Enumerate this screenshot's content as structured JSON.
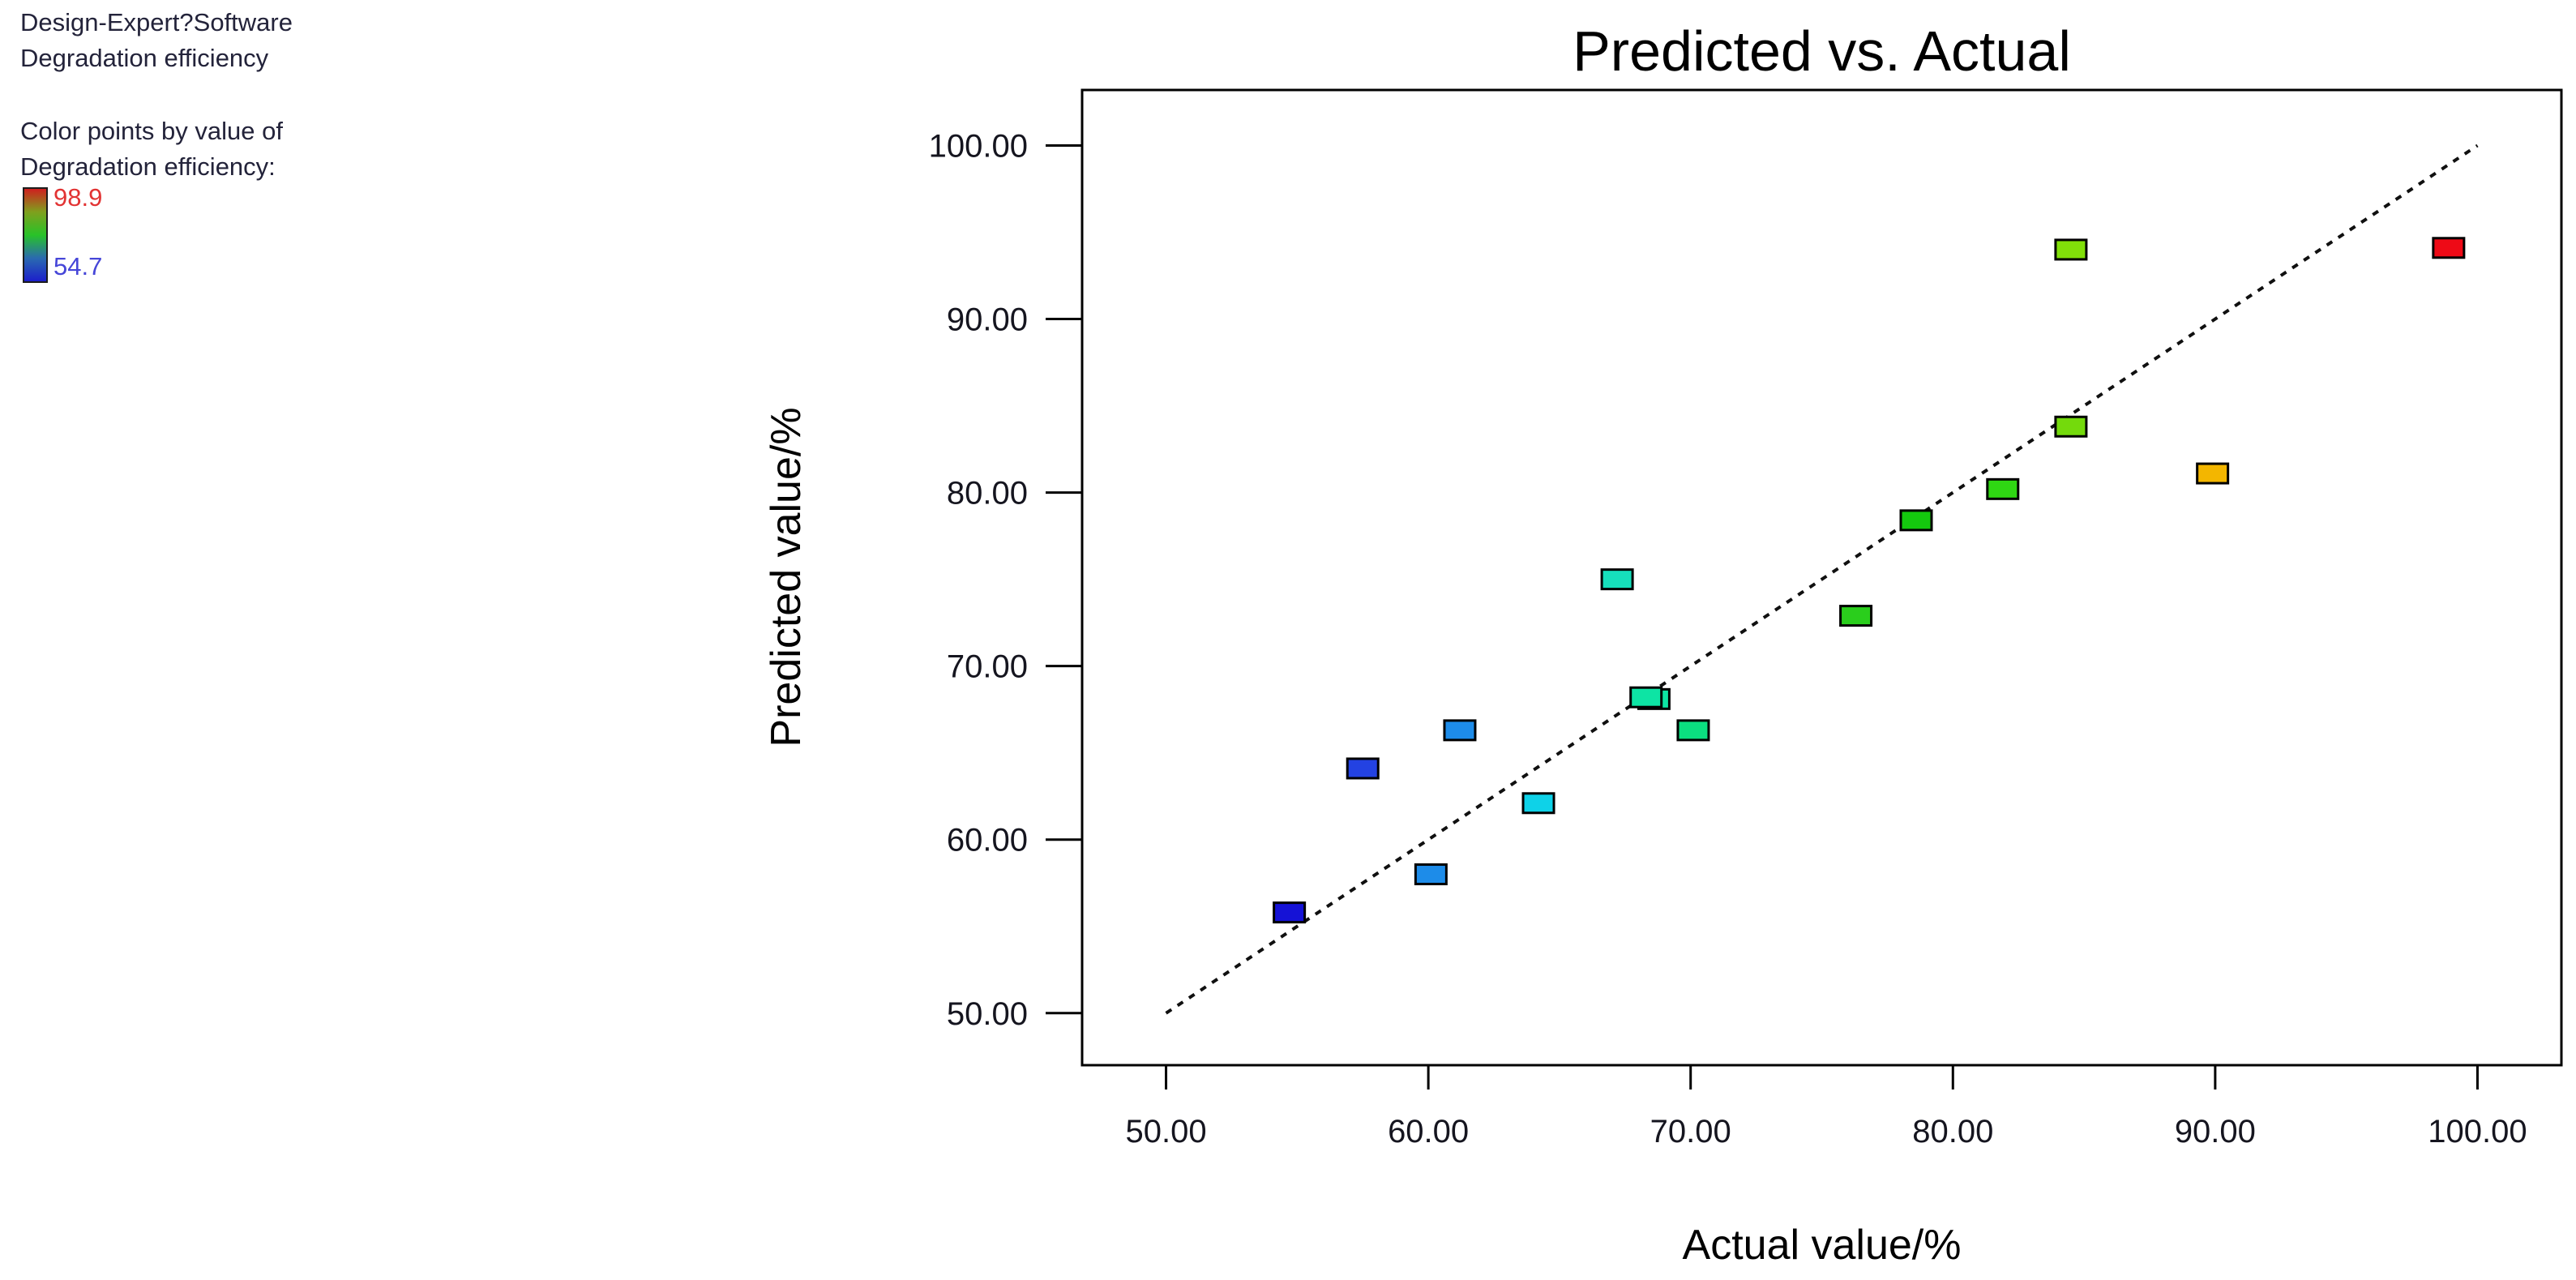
{
  "info_panel": {
    "line1": "Design-Expert?Software",
    "line2": "Degradation efficiency",
    "line3": "Color points by value of",
    "line4": "Degradation efficiency:",
    "max_label": "98.9",
    "min_label": "54.7",
    "max_label_color": "#e23333",
    "min_label_color": "#4646d8",
    "gradient_colors": [
      "#cf1f1f",
      "#7fa01d",
      "#28c228",
      "#2a6ab0",
      "#1c1ecb"
    ]
  },
  "chart_data": {
    "type": "scatter",
    "title": "Predicted vs. Actual",
    "xlabel": "Actual value/%",
    "ylabel": "Predicted value/%",
    "xlim": [
      46.8,
      103.2
    ],
    "ylim": [
      47.0,
      103.2
    ],
    "grid": false,
    "x_ticks": [
      {
        "value": 50,
        "label": "50.00"
      },
      {
        "value": 60,
        "label": "60.00"
      },
      {
        "value": 70,
        "label": "70.00"
      },
      {
        "value": 80,
        "label": "80.00"
      },
      {
        "value": 90,
        "label": "90.00"
      },
      {
        "value": 100,
        "label": "100.00"
      }
    ],
    "y_ticks": [
      {
        "value": 50,
        "label": "50.00"
      },
      {
        "value": 60,
        "label": "60.00"
      },
      {
        "value": 70,
        "label": "70.00"
      },
      {
        "value": 80,
        "label": "80.00"
      },
      {
        "value": 90,
        "label": "90.00"
      },
      {
        "value": 100,
        "label": "100.00"
      }
    ],
    "identity_line": {
      "x1": 50,
      "y1": 50,
      "x2": 100,
      "y2": 100,
      "style": "dashed",
      "color": "#101010"
    },
    "color_scale": {
      "min": 54.7,
      "max": 98.9,
      "min_color": "#1c1ecb",
      "max_color": "#cf1f1f"
    },
    "series": [
      {
        "name": "Degradation efficiency",
        "marker": "rect",
        "points": [
          {
            "x": 54.7,
            "y": 55.8,
            "color": "#1512d6"
          },
          {
            "x": 57.5,
            "y": 64.1,
            "color": "#2342e2"
          },
          {
            "x": 60.1,
            "y": 58.0,
            "color": "#1d8ce9"
          },
          {
            "x": 61.2,
            "y": 66.3,
            "color": "#1d8ce9"
          },
          {
            "x": 64.2,
            "y": 62.1,
            "color": "#0ed2e8"
          },
          {
            "x": 67.2,
            "y": 75.0,
            "color": "#16e0bc"
          },
          {
            "x": 68.6,
            "y": 68.1,
            "color": "#0de4a4"
          },
          {
            "x": 68.3,
            "y": 68.2,
            "color": "#0de4a4"
          },
          {
            "x": 70.1,
            "y": 66.3,
            "color": "#0bdf80"
          },
          {
            "x": 76.3,
            "y": 72.9,
            "color": "#2ace1c"
          },
          {
            "x": 78.6,
            "y": 78.4,
            "color": "#14c90e"
          },
          {
            "x": 81.9,
            "y": 80.2,
            "color": "#2fd713"
          },
          {
            "x": 84.5,
            "y": 83.8,
            "color": "#74da0c"
          },
          {
            "x": 84.5,
            "y": 94.0,
            "color": "#81e009"
          },
          {
            "x": 89.9,
            "y": 81.1,
            "color": "#f3b600"
          },
          {
            "x": 98.9,
            "y": 94.1,
            "color": "#ee0a16"
          }
        ]
      }
    ]
  }
}
